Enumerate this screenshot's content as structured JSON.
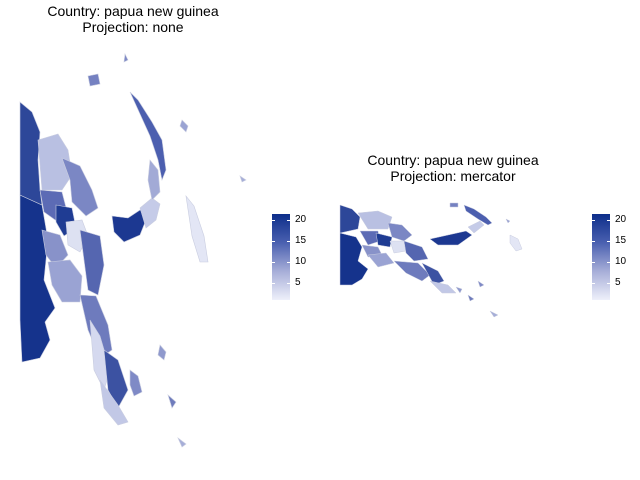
{
  "panels": [
    {
      "title_line1": "Country: papua new guinea",
      "title_line2": "Projection: none",
      "legend": {
        "ticks": [
          "20",
          "15",
          "10",
          "5"
        ],
        "min_value": 1,
        "max_value": 21,
        "color_low": "#e8ebf8",
        "color_high": "#0d2e8a"
      }
    },
    {
      "title_line1": "Country: papua new guinea",
      "title_line2": "Projection: mercator",
      "legend": {
        "ticks": [
          "20",
          "15",
          "10",
          "5"
        ],
        "min_value": 1,
        "max_value": 21,
        "color_low": "#e8ebf8",
        "color_high": "#0d2e8a"
      }
    }
  ]
}
